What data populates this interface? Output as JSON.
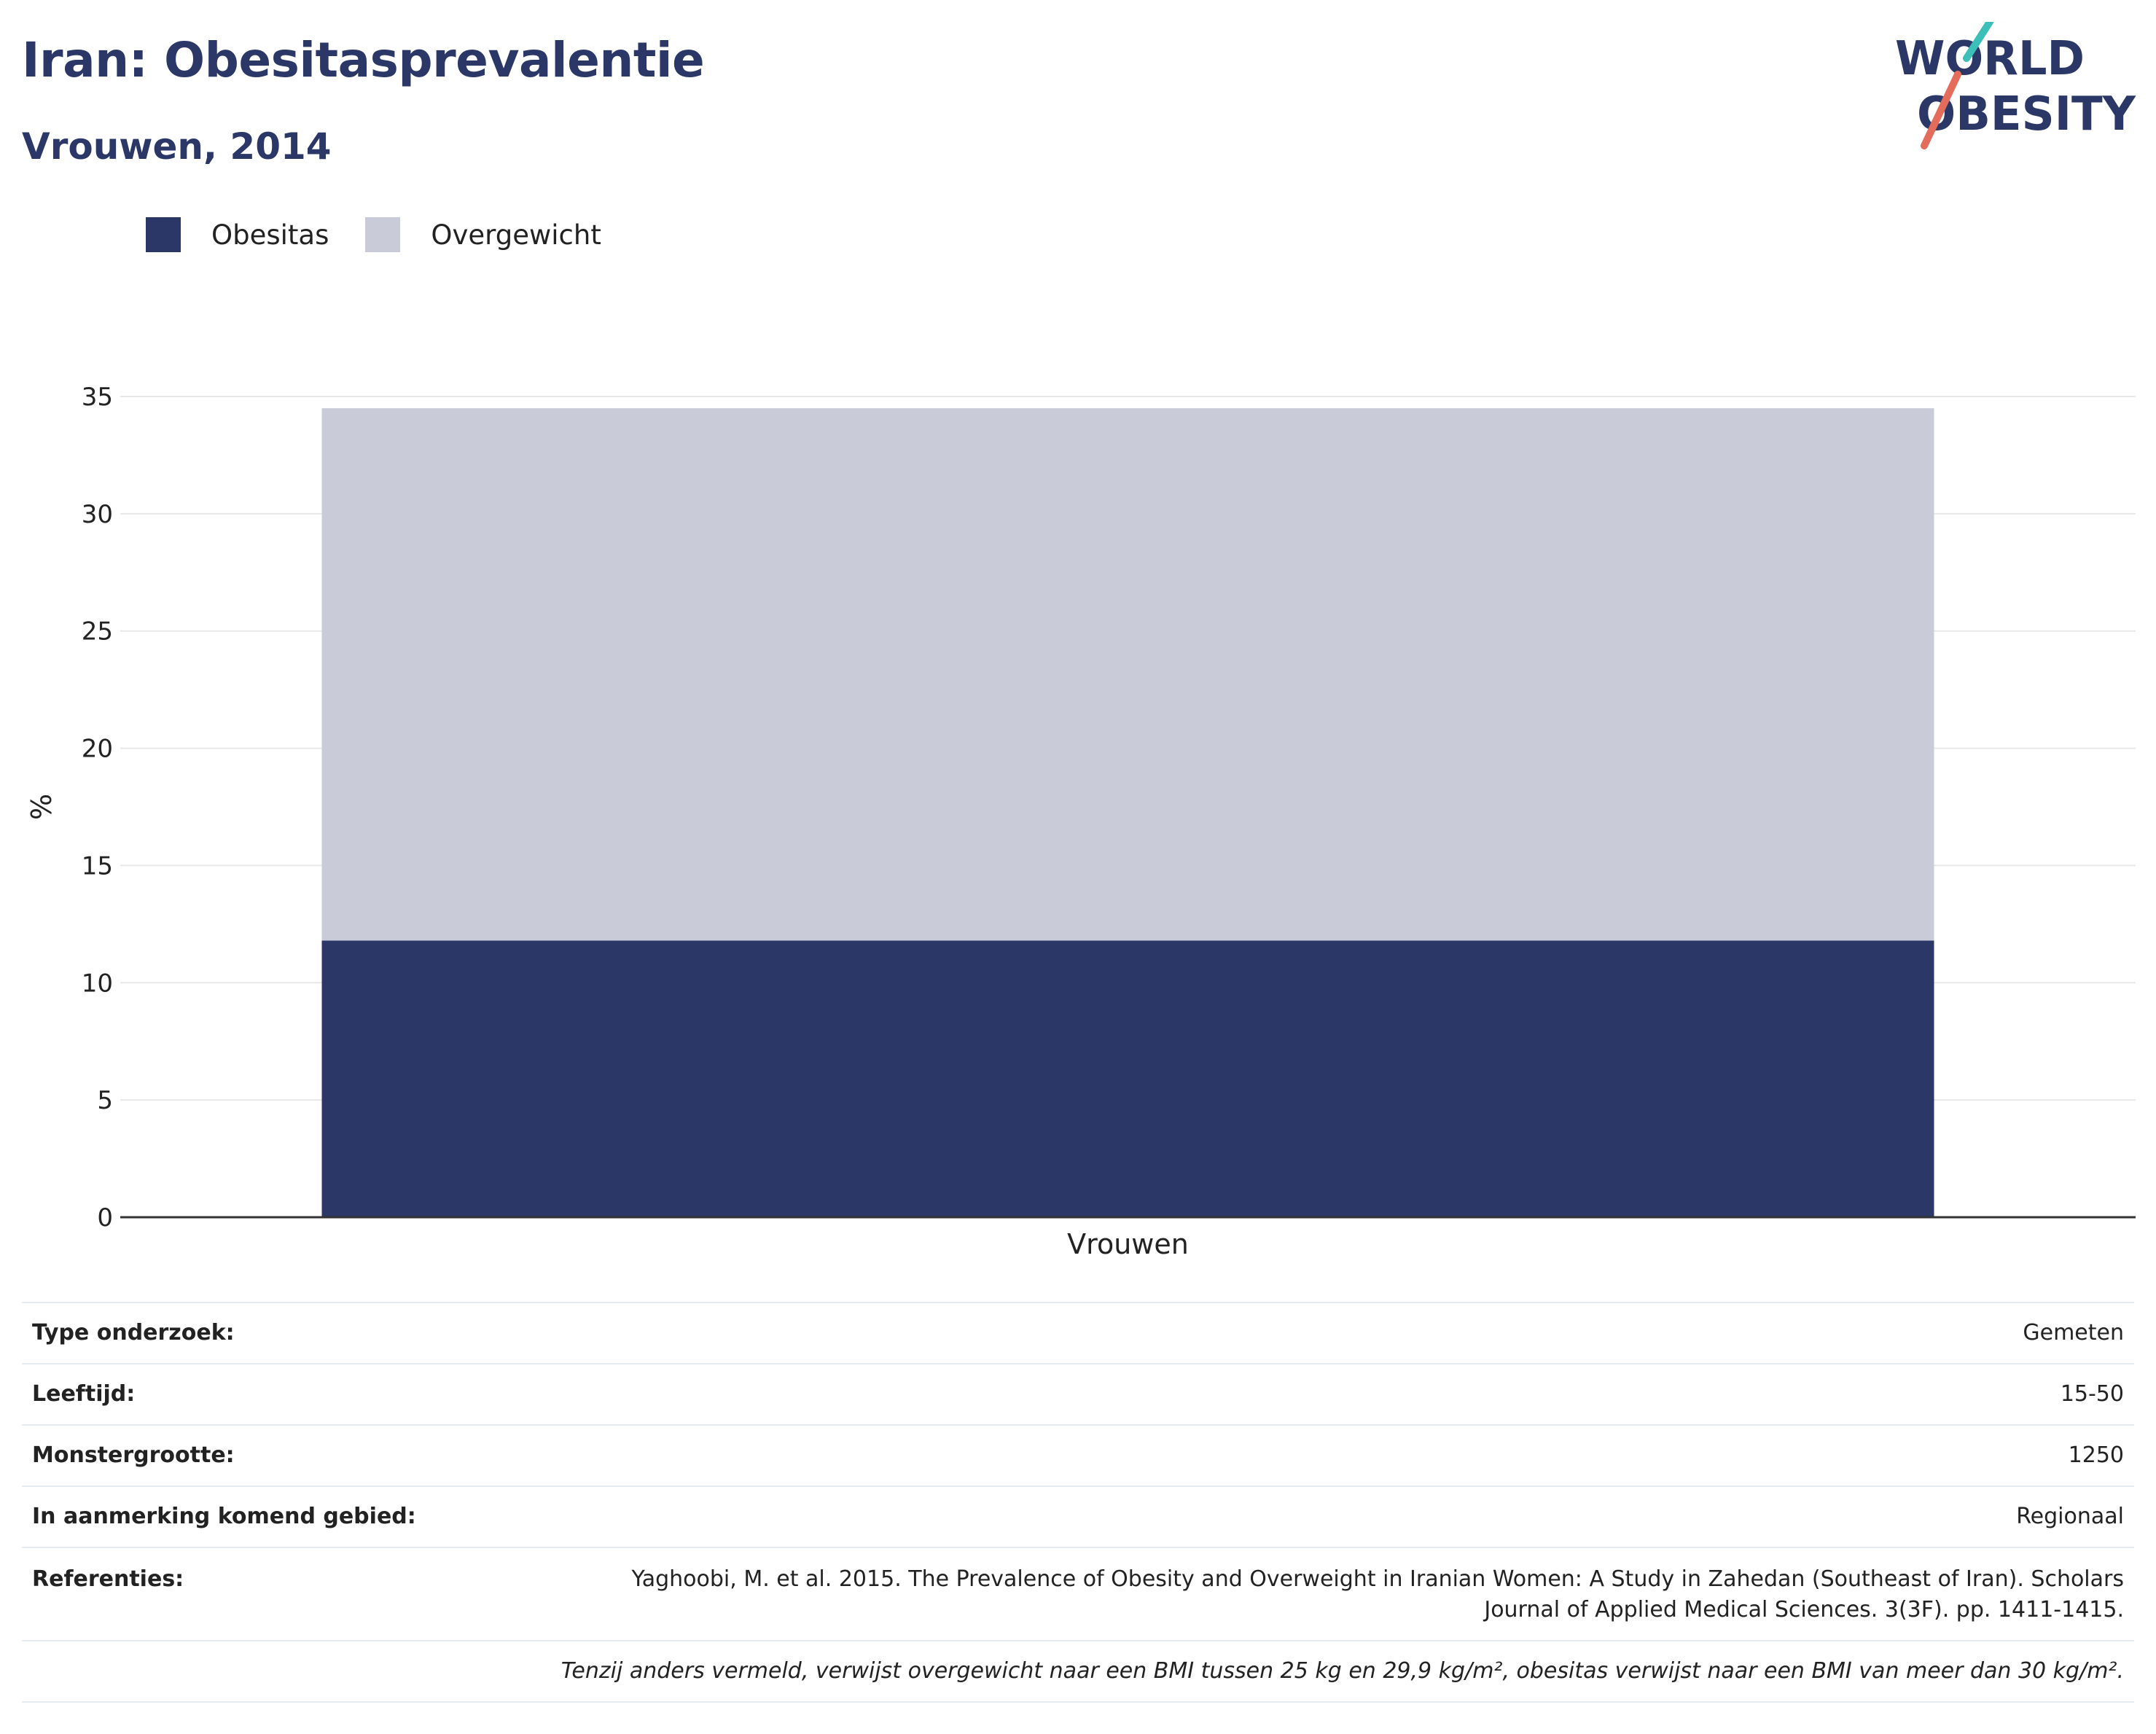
{
  "header": {
    "title": "Iran: Obesitasprevalentie",
    "subtitle": "Vrouwen, 2014"
  },
  "logo": {
    "text_line1": "WORLD",
    "text_line2": "OBESITY",
    "colors": {
      "text": "#2b3766",
      "slash_top": "#3cbfb8",
      "slash_bottom": "#e36d5a"
    }
  },
  "legend": [
    {
      "label": "Obesitas",
      "color": "#2b3766"
    },
    {
      "label": "Overgewicht",
      "color": "#c9ccd8"
    }
  ],
  "chart_data": {
    "type": "bar",
    "stacked": true,
    "categories": [
      "Vrouwen"
    ],
    "series": [
      {
        "name": "Obesitas",
        "values": [
          11.8
        ],
        "color": "#2b3766"
      },
      {
        "name": "Overgewicht",
        "values": [
          22.7
        ],
        "color": "#c9ccd8"
      }
    ],
    "ylabel": "%",
    "xlabel": "",
    "ylim": [
      0,
      35
    ],
    "yticks": [
      0,
      5,
      10,
      15,
      20,
      25,
      30,
      35
    ],
    "grid": true,
    "legend_position": "top-left"
  },
  "info_table": {
    "rows": [
      {
        "key": "Type onderzoek:",
        "value": "Gemeten"
      },
      {
        "key": "Leeftijd:",
        "value": "15-50"
      },
      {
        "key": "Monstergrootte:",
        "value": "1250"
      },
      {
        "key": "In aanmerking komend gebied:",
        "value": "Regionaal"
      }
    ],
    "reference_key": "Referenties:",
    "reference_line1": "Yaghoobi, M. et al. 2015. The Prevalence of Obesity and Overweight in Iranian Women: A Study in Zahedan (Southeast of Iran). Scholars",
    "reference_line2": "Journal of Applied Medical Sciences. 3(3F). pp. 1411-1415.",
    "note": "Tenzij anders vermeld, verwijst overgewicht naar een BMI tussen 25 kg en 29,9 kg/m², obesitas verwijst naar een BMI van meer dan 30 kg/m²."
  }
}
